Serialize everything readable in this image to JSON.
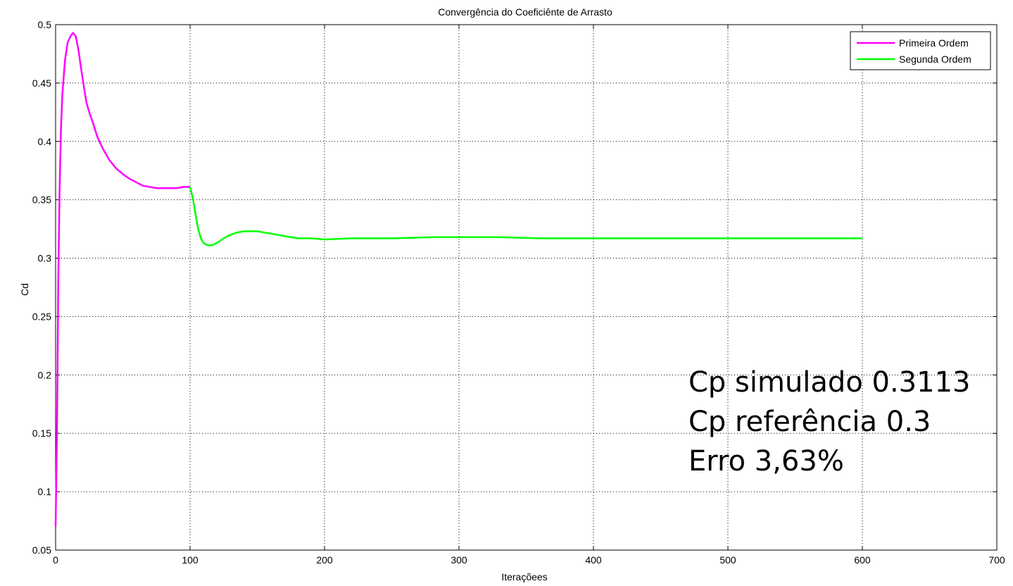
{
  "chart_data": {
    "type": "line",
    "title": "Convergência do Coeficiênte de Arrasto",
    "xlabel": "Iteraçõees",
    "ylabel": "Cd",
    "xlim": [
      0,
      700
    ],
    "ylim": [
      0.05,
      0.5
    ],
    "grid": true,
    "legend_position": "top-right",
    "x_ticks": [
      "0",
      "100",
      "200",
      "300",
      "400",
      "500",
      "600",
      "700"
    ],
    "y_ticks": [
      "0.05",
      "0.1",
      "0.15",
      "0.2",
      "0.25",
      "0.3",
      "0.35",
      "0.4",
      "0.45",
      "0.5"
    ],
    "series": [
      {
        "name": "Primeira Ordem",
        "color": "#ff00ff",
        "x": [
          0,
          1,
          2,
          3,
          4,
          5,
          7,
          9,
          11,
          13,
          15,
          17,
          19,
          21,
          23,
          25,
          28,
          31,
          35,
          40,
          45,
          50,
          55,
          60,
          65,
          70,
          75,
          80,
          85,
          90,
          95,
          100
        ],
        "y": [
          0.07,
          0.15,
          0.28,
          0.36,
          0.41,
          0.44,
          0.47,
          0.485,
          0.49,
          0.493,
          0.49,
          0.478,
          0.462,
          0.447,
          0.433,
          0.425,
          0.415,
          0.404,
          0.394,
          0.384,
          0.377,
          0.372,
          0.368,
          0.365,
          0.362,
          0.361,
          0.36,
          0.36,
          0.36,
          0.36,
          0.361,
          0.361
        ]
      },
      {
        "name": "Segunda Ordem",
        "color": "#00ff00",
        "x": [
          100,
          102,
          104,
          106,
          108,
          110,
          113,
          116,
          120,
          125,
          130,
          135,
          140,
          145,
          150,
          160,
          170,
          180,
          190,
          200,
          220,
          250,
          280,
          300,
          330,
          360,
          400,
          450,
          500,
          550,
          600
        ],
        "y": [
          0.361,
          0.352,
          0.338,
          0.325,
          0.317,
          0.313,
          0.311,
          0.311,
          0.313,
          0.317,
          0.32,
          0.322,
          0.323,
          0.323,
          0.323,
          0.321,
          0.319,
          0.317,
          0.317,
          0.316,
          0.317,
          0.317,
          0.318,
          0.318,
          0.318,
          0.317,
          0.317,
          0.317,
          0.317,
          0.317,
          0.317
        ]
      }
    ],
    "annotations": [
      "Cp simulado  0.3113",
      "Cp referência 0.3",
      "Erro 3,63%"
    ]
  }
}
